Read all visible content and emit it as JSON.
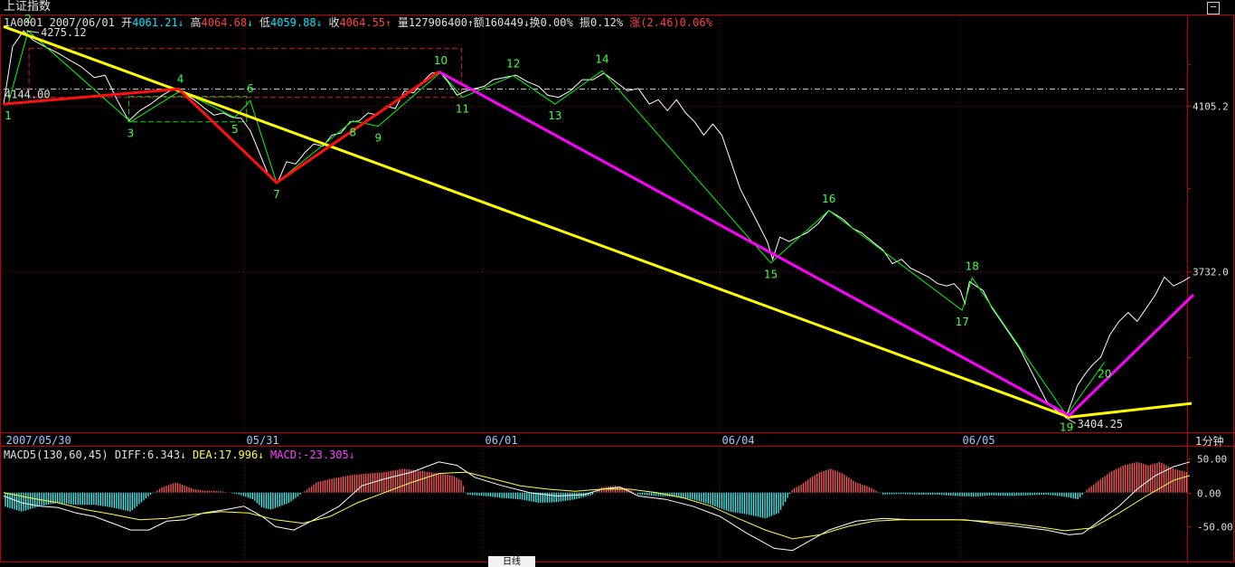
{
  "header": {
    "title": "上证指数",
    "code": "1A0001",
    "date": "2007/06/01",
    "open_label": "开",
    "open": "4061.21",
    "high_label": "高",
    "high": "4064.68",
    "low_label": "低",
    "low": "4059.88",
    "close_label": "收",
    "close": "4064.55",
    "volume_label": "量",
    "volume": "127906400",
    "amount_label": "额",
    "amount": "160449",
    "turnover_label": "换",
    "turnover": "0.00%",
    "amplitude_label": "振",
    "amplitude": "0.12%",
    "change_label": "涨",
    "change": "(2.46)0.06%",
    "up_arrow": "↑",
    "down_arrow": "↓"
  },
  "macd_legend": {
    "name": "MACD5(130,60,45)",
    "diff": "DIFF:6.343",
    "dea": "DEA:17.996",
    "macd": "MACD:-23.305"
  },
  "period_label": "1分钟",
  "bottom_tab_label": "日线",
  "colors": {
    "background": "#000000",
    "grid": "#8b0000",
    "frame": "#c00000",
    "price": "#ffffff",
    "wave": "#00ff00",
    "red_line": "#ff1010",
    "yellow_line": "#ffff00",
    "magenta_line": "#ff00ff",
    "bar_up": "#ff5a5a",
    "bar_down": "#44f0f0"
  },
  "chart_data": {
    "type": "line",
    "title": "上证指数",
    "price_axis": {
      "ylim": [
        3370,
        4310
      ],
      "tick_labels": [
        "4105.2",
        "3732.0"
      ],
      "ticks": [
        4105.2,
        3732.0
      ],
      "reference_line": 4144.0
    },
    "x_axis": {
      "range": [
        0,
        1305
      ],
      "ticks": [
        {
          "x": 0,
          "label": "2007/05/30"
        },
        {
          "x": 265,
          "label": "05/31"
        },
        {
          "x": 528,
          "label": "06/01"
        },
        {
          "x": 790,
          "label": "06/04"
        },
        {
          "x": 1055,
          "label": "06/05"
        }
      ]
    },
    "annotations": [
      {
        "text": "4275.12",
        "x": 25,
        "y": 4275.12
      },
      {
        "text": "4144.00",
        "x": 0,
        "y": 4144.0
      },
      {
        "text": "3404.25",
        "x": 1170,
        "y": 3404.25
      }
    ],
    "close": [
      [
        0,
        4110
      ],
      [
        10,
        4240
      ],
      [
        22,
        4275
      ],
      [
        32,
        4255
      ],
      [
        45,
        4240
      ],
      [
        60,
        4225
      ],
      [
        72,
        4210
      ],
      [
        85,
        4195
      ],
      [
        100,
        4170
      ],
      [
        112,
        4175
      ],
      [
        125,
        4120
      ],
      [
        138,
        4072
      ],
      [
        150,
        4095
      ],
      [
        162,
        4110
      ],
      [
        175,
        4130
      ],
      [
        188,
        4145
      ],
      [
        198,
        4135
      ],
      [
        210,
        4120
      ],
      [
        222,
        4100
      ],
      [
        232,
        4085
      ],
      [
        242,
        4090
      ],
      [
        252,
        4080
      ],
      [
        262,
        4078
      ],
      [
        272,
        4050
      ],
      [
        282,
        4000
      ],
      [
        292,
        3950
      ],
      [
        302,
        3933
      ],
      [
        312,
        3980
      ],
      [
        322,
        3975
      ],
      [
        332,
        4000
      ],
      [
        342,
        4020
      ],
      [
        352,
        4015
      ],
      [
        362,
        4040
      ],
      [
        372,
        4045
      ],
      [
        382,
        4070
      ],
      [
        392,
        4072
      ],
      [
        402,
        4090
      ],
      [
        412,
        4085
      ],
      [
        422,
        4105
      ],
      [
        432,
        4100
      ],
      [
        442,
        4140
      ],
      [
        452,
        4135
      ],
      [
        462,
        4160
      ],
      [
        472,
        4180
      ],
      [
        482,
        4180
      ],
      [
        490,
        4160
      ],
      [
        500,
        4130
      ],
      [
        510,
        4140
      ],
      [
        520,
        4145
      ],
      [
        530,
        4150
      ],
      [
        540,
        4165
      ],
      [
        552,
        4170
      ],
      [
        565,
        4175
      ],
      [
        578,
        4160
      ],
      [
        590,
        4150
      ],
      [
        600,
        4130
      ],
      [
        612,
        4125
      ],
      [
        625,
        4140
      ],
      [
        638,
        4165
      ],
      [
        650,
        4165
      ],
      [
        662,
        4180
      ],
      [
        675,
        4160
      ],
      [
        688,
        4140
      ],
      [
        700,
        4145
      ],
      [
        712,
        4110
      ],
      [
        722,
        4120
      ],
      [
        732,
        4095
      ],
      [
        742,
        4120
      ],
      [
        752,
        4090
      ],
      [
        762,
        4070
      ],
      [
        772,
        4040
      ],
      [
        782,
        4065
      ],
      [
        792,
        4040
      ],
      [
        802,
        3980
      ],
      [
        812,
        3920
      ],
      [
        822,
        3880
      ],
      [
        832,
        3840
      ],
      [
        842,
        3800
      ],
      [
        848,
        3760
      ],
      [
        856,
        3810
      ],
      [
        866,
        3800
      ],
      [
        876,
        3810
      ],
      [
        886,
        3820
      ],
      [
        898,
        3840
      ],
      [
        910,
        3870
      ],
      [
        918,
        3860
      ],
      [
        926,
        3850
      ],
      [
        936,
        3830
      ],
      [
        946,
        3820
      ],
      [
        958,
        3800
      ],
      [
        970,
        3780
      ],
      [
        980,
        3750
      ],
      [
        990,
        3760
      ],
      [
        1000,
        3740
      ],
      [
        1010,
        3730
      ],
      [
        1020,
        3720
      ],
      [
        1030,
        3705
      ],
      [
        1040,
        3700
      ],
      [
        1048,
        3705
      ],
      [
        1055,
        3690
      ],
      [
        1060,
        3660
      ],
      [
        1065,
        3710
      ],
      [
        1072,
        3700
      ],
      [
        1080,
        3690
      ],
      [
        1090,
        3650
      ],
      [
        1100,
        3620
      ],
      [
        1110,
        3590
      ],
      [
        1120,
        3560
      ],
      [
        1130,
        3520
      ],
      [
        1140,
        3480
      ],
      [
        1150,
        3440
      ],
      [
        1160,
        3420
      ],
      [
        1168,
        3415
      ],
      [
        1172,
        3408
      ],
      [
        1178,
        3440
      ],
      [
        1184,
        3475
      ],
      [
        1192,
        3500
      ],
      [
        1200,
        3520
      ],
      [
        1210,
        3540
      ],
      [
        1220,
        3590
      ],
      [
        1230,
        3620
      ],
      [
        1240,
        3640
      ],
      [
        1250,
        3620
      ],
      [
        1260,
        3650
      ],
      [
        1270,
        3680
      ],
      [
        1280,
        3720
      ],
      [
        1290,
        3700
      ],
      [
        1300,
        3710
      ],
      [
        1308,
        3720
      ]
    ],
    "wave_points": [
      {
        "n": "1",
        "x": 5,
        "y": 4110
      },
      {
        "n": "2",
        "x": 27,
        "y": 4275
      },
      {
        "n": "3",
        "x": 140,
        "y": 4070
      },
      {
        "n": "4",
        "x": 195,
        "y": 4140
      },
      {
        "n": "5",
        "x": 255,
        "y": 4080
      },
      {
        "n": "6",
        "x": 272,
        "y": 4118
      },
      {
        "n": "7",
        "x": 301,
        "y": 3933
      },
      {
        "n": "8",
        "x": 385,
        "y": 4072
      },
      {
        "n": "9",
        "x": 413,
        "y": 4060
      },
      {
        "n": "10",
        "x": 482,
        "y": 4182
      },
      {
        "n": "11",
        "x": 506,
        "y": 4125
      },
      {
        "n": "12",
        "x": 562,
        "y": 4174
      },
      {
        "n": "13",
        "x": 608,
        "y": 4110
      },
      {
        "n": "14",
        "x": 660,
        "y": 4185
      },
      {
        "n": "15",
        "x": 846,
        "y": 3752
      },
      {
        "n": "16",
        "x": 910,
        "y": 3870
      },
      {
        "n": "17",
        "x": 1057,
        "y": 3645
      },
      {
        "n": "18",
        "x": 1068,
        "y": 3718
      },
      {
        "n": "19",
        "x": 1172,
        "y": 3408
      },
      {
        "n": "20",
        "x": 1214,
        "y": 3528
      }
    ],
    "red_line": [
      [
        0,
        4110
      ],
      [
        193,
        4144
      ],
      [
        301,
        3933
      ],
      [
        480,
        4183
      ]
    ],
    "yellow_line": [
      [
        0,
        4285
      ],
      [
        1175,
        3404
      ],
      [
        1310,
        3435
      ]
    ],
    "magenta_line": [
      [
        480,
        4183
      ],
      [
        1175,
        3408
      ],
      [
        1312,
        3680
      ]
    ],
    "macd_panel": {
      "ylim": [
        -100,
        70
      ],
      "tick_labels": [
        "50.00",
        "0.00",
        "-50.00"
      ],
      "ticks": [
        50,
        0,
        -50
      ],
      "histogram": [
        [
          0,
          -20
        ],
        [
          20,
          -28
        ],
        [
          40,
          -20
        ],
        [
          60,
          -15
        ],
        [
          80,
          -18
        ],
        [
          100,
          -18
        ],
        [
          120,
          -22
        ],
        [
          140,
          -28
        ],
        [
          160,
          -5
        ],
        [
          175,
          8
        ],
        [
          190,
          15
        ],
        [
          200,
          10
        ],
        [
          210,
          5
        ],
        [
          220,
          3
        ],
        [
          240,
          2
        ],
        [
          260,
          -3
        ],
        [
          275,
          -10
        ],
        [
          285,
          -22
        ],
        [
          295,
          -25
        ],
        [
          305,
          -20
        ],
        [
          315,
          -15
        ],
        [
          330,
          0
        ],
        [
          345,
          15
        ],
        [
          360,
          20
        ],
        [
          380,
          25
        ],
        [
          400,
          28
        ],
        [
          420,
          30
        ],
        [
          440,
          35
        ],
        [
          460,
          32
        ],
        [
          480,
          28
        ],
        [
          495,
          25
        ],
        [
          505,
          18
        ],
        [
          510,
          -3
        ],
        [
          530,
          -5
        ],
        [
          550,
          -8
        ],
        [
          570,
          -10
        ],
        [
          590,
          -15
        ],
        [
          610,
          -14
        ],
        [
          630,
          -10
        ],
        [
          650,
          -3
        ],
        [
          660,
          8
        ],
        [
          675,
          10
        ],
        [
          690,
          5
        ],
        [
          700,
          -3
        ],
        [
          720,
          -5
        ],
        [
          740,
          -6
        ],
        [
          760,
          -10
        ],
        [
          780,
          -18
        ],
        [
          800,
          -28
        ],
        [
          820,
          -32
        ],
        [
          840,
          -38
        ],
        [
          855,
          -30
        ],
        [
          870,
          5
        ],
        [
          880,
          12
        ],
        [
          890,
          22
        ],
        [
          900,
          30
        ],
        [
          912,
          35
        ],
        [
          925,
          28
        ],
        [
          940,
          15
        ],
        [
          955,
          8
        ],
        [
          970,
          -3
        ],
        [
          990,
          -2
        ],
        [
          1010,
          -3
        ],
        [
          1030,
          -3
        ],
        [
          1050,
          -5
        ],
        [
          1070,
          -6
        ],
        [
          1090,
          -4
        ],
        [
          1110,
          -5
        ],
        [
          1130,
          -4
        ],
        [
          1150,
          -3
        ],
        [
          1170,
          -6
        ],
        [
          1185,
          -10
        ],
        [
          1195,
          5
        ],
        [
          1205,
          15
        ],
        [
          1220,
          30
        ],
        [
          1235,
          40
        ],
        [
          1250,
          45
        ],
        [
          1262,
          40
        ],
        [
          1275,
          45
        ],
        [
          1290,
          35
        ],
        [
          1305,
          30
        ]
      ],
      "diff": [
        [
          0,
          -5
        ],
        [
          20,
          -15
        ],
        [
          40,
          -20
        ],
        [
          60,
          -22
        ],
        [
          80,
          -30
        ],
        [
          100,
          -35
        ],
        [
          120,
          -45
        ],
        [
          140,
          -55
        ],
        [
          160,
          -55
        ],
        [
          180,
          -42
        ],
        [
          200,
          -40
        ],
        [
          220,
          -30
        ],
        [
          245,
          -25
        ],
        [
          265,
          -20
        ],
        [
          285,
          -35
        ],
        [
          300,
          -50
        ],
        [
          320,
          -55
        ],
        [
          345,
          -38
        ],
        [
          370,
          -20
        ],
        [
          395,
          10
        ],
        [
          420,
          20
        ],
        [
          450,
          30
        ],
        [
          480,
          45
        ],
        [
          500,
          40
        ],
        [
          520,
          22
        ],
        [
          550,
          10
        ],
        [
          580,
          0
        ],
        [
          610,
          -5
        ],
        [
          640,
          -3
        ],
        [
          660,
          5
        ],
        [
          680,
          8
        ],
        [
          700,
          -5
        ],
        [
          730,
          -10
        ],
        [
          760,
          -20
        ],
        [
          790,
          -35
        ],
        [
          820,
          -60
        ],
        [
          850,
          -82
        ],
        [
          870,
          -85
        ],
        [
          890,
          -70
        ],
        [
          910,
          -55
        ],
        [
          940,
          -42
        ],
        [
          970,
          -38
        ],
        [
          1000,
          -40
        ],
        [
          1030,
          -40
        ],
        [
          1060,
          -40
        ],
        [
          1090,
          -45
        ],
        [
          1120,
          -50
        ],
        [
          1150,
          -55
        ],
        [
          1175,
          -62
        ],
        [
          1190,
          -60
        ],
        [
          1210,
          -40
        ],
        [
          1230,
          -20
        ],
        [
          1250,
          5
        ],
        [
          1270,
          25
        ],
        [
          1290,
          38
        ],
        [
          1308,
          45
        ]
      ],
      "dea": [
        [
          0,
          0
        ],
        [
          30,
          -8
        ],
        [
          60,
          -15
        ],
        [
          90,
          -25
        ],
        [
          120,
          -32
        ],
        [
          150,
          -40
        ],
        [
          180,
          -38
        ],
        [
          210,
          -32
        ],
        [
          240,
          -28
        ],
        [
          270,
          -30
        ],
        [
          300,
          -40
        ],
        [
          330,
          -45
        ],
        [
          360,
          -35
        ],
        [
          390,
          -15
        ],
        [
          420,
          0
        ],
        [
          450,
          15
        ],
        [
          480,
          28
        ],
        [
          510,
          30
        ],
        [
          540,
          20
        ],
        [
          570,
          10
        ],
        [
          600,
          5
        ],
        [
          630,
          2
        ],
        [
          660,
          5
        ],
        [
          690,
          5
        ],
        [
          720,
          0
        ],
        [
          750,
          -8
        ],
        [
          780,
          -20
        ],
        [
          810,
          -38
        ],
        [
          840,
          -55
        ],
        [
          870,
          -68
        ],
        [
          900,
          -62
        ],
        [
          930,
          -50
        ],
        [
          960,
          -42
        ],
        [
          990,
          -40
        ],
        [
          1020,
          -40
        ],
        [
          1050,
          -40
        ],
        [
          1080,
          -42
        ],
        [
          1110,
          -45
        ],
        [
          1140,
          -50
        ],
        [
          1170,
          -56
        ],
        [
          1200,
          -52
        ],
        [
          1230,
          -30
        ],
        [
          1260,
          -5
        ],
        [
          1290,
          18
        ],
        [
          1308,
          25
        ]
      ]
    }
  }
}
